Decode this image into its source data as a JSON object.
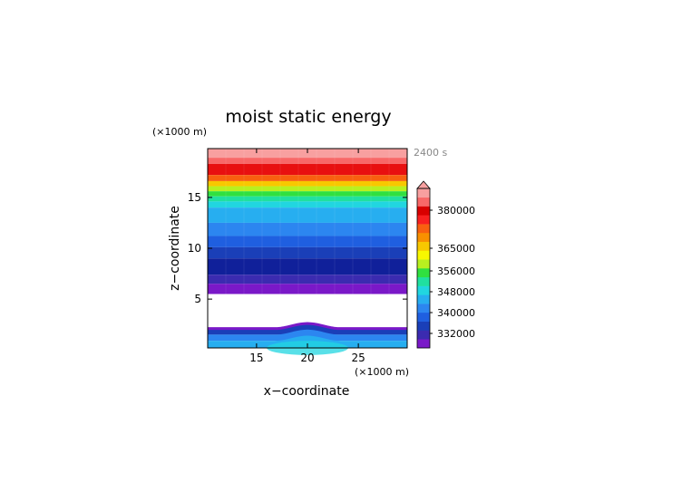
{
  "chart_data": {
    "type": "heatmap",
    "title": "moist static energy",
    "time_label": "2400 s",
    "xlabel": "x−coordinate",
    "ylabel": "z−coordinate",
    "x_unit": "(×1000 m)",
    "y_unit": "(×1000 m)",
    "xlim": [
      10.2,
      29.8
    ],
    "ylim": [
      0.2,
      19.8
    ],
    "x_ticks": [
      "15",
      "20",
      "25"
    ],
    "x_tick_values": [
      15,
      20,
      25
    ],
    "y_ticks": [
      "5",
      "10",
      "15"
    ],
    "y_tick_values": [
      5,
      10,
      15
    ],
    "colorbar_labels": [
      "332000",
      "340000",
      "348000",
      "356000",
      "365000",
      "380000"
    ],
    "colorbar_colors": [
      "#7a18c8",
      "#3b2bb0",
      "#1a3fb8",
      "#1f5fe0",
      "#2c86f0",
      "#27aef0",
      "#21d6e0",
      "#20e0a0",
      "#30e040",
      "#b8f020",
      "#f8f800",
      "#f8c800",
      "#f89000",
      "#f86010",
      "#f82020",
      "#d80000",
      "#f86868",
      "#f8a0a0"
    ],
    "bands": [
      {
        "z0": 18.9,
        "z1": 19.8,
        "color": "#f8a0a0"
      },
      {
        "z0": 18.3,
        "z1": 18.9,
        "color": "#f86868"
      },
      {
        "z0": 17.2,
        "z1": 18.3,
        "color": "#e81010"
      },
      {
        "z0": 16.6,
        "z1": 17.2,
        "color": "#f86010"
      },
      {
        "z0": 16.1,
        "z1": 16.6,
        "color": "#f8c800"
      },
      {
        "z0": 15.6,
        "z1": 16.1,
        "color": "#b8f020"
      },
      {
        "z0": 15.1,
        "z1": 15.6,
        "color": "#30e040"
      },
      {
        "z0": 14.6,
        "z1": 15.1,
        "color": "#20e0a0"
      },
      {
        "z0": 14.0,
        "z1": 14.6,
        "color": "#21d6e0"
      },
      {
        "z0": 12.5,
        "z1": 14.0,
        "color": "#27aef0"
      },
      {
        "z0": 11.2,
        "z1": 12.5,
        "color": "#2c86f0"
      },
      {
        "z0": 10.1,
        "z1": 11.2,
        "color": "#1f5fe0"
      },
      {
        "z0": 9.0,
        "z1": 10.1,
        "color": "#1a3fb8"
      },
      {
        "z0": 7.4,
        "z1": 9.0,
        "color": "#10209a"
      },
      {
        "z0": 6.5,
        "z1": 7.4,
        "color": "#3b2bb0"
      },
      {
        "z0": 5.5,
        "z1": 6.5,
        "color": "#7a18c8"
      }
    ],
    "lower_layer_top": 2.1,
    "bump": {
      "center": 20,
      "half_width": 3.2,
      "height": 0.5
    },
    "lower_bands": [
      {
        "z0": 1.5,
        "z1": 2.1,
        "color": "#1a3fb8"
      },
      {
        "z0": 0.9,
        "z1": 1.5,
        "color": "#2c86f0"
      },
      {
        "z0": 0.2,
        "z1": 0.9,
        "color": "#27aef0"
      }
    ],
    "lower_top_line_color": "#7a18c8",
    "green_patch": {
      "center": 20,
      "half_width": 4,
      "z_top": 0.9,
      "color": "#21d6e0"
    }
  }
}
